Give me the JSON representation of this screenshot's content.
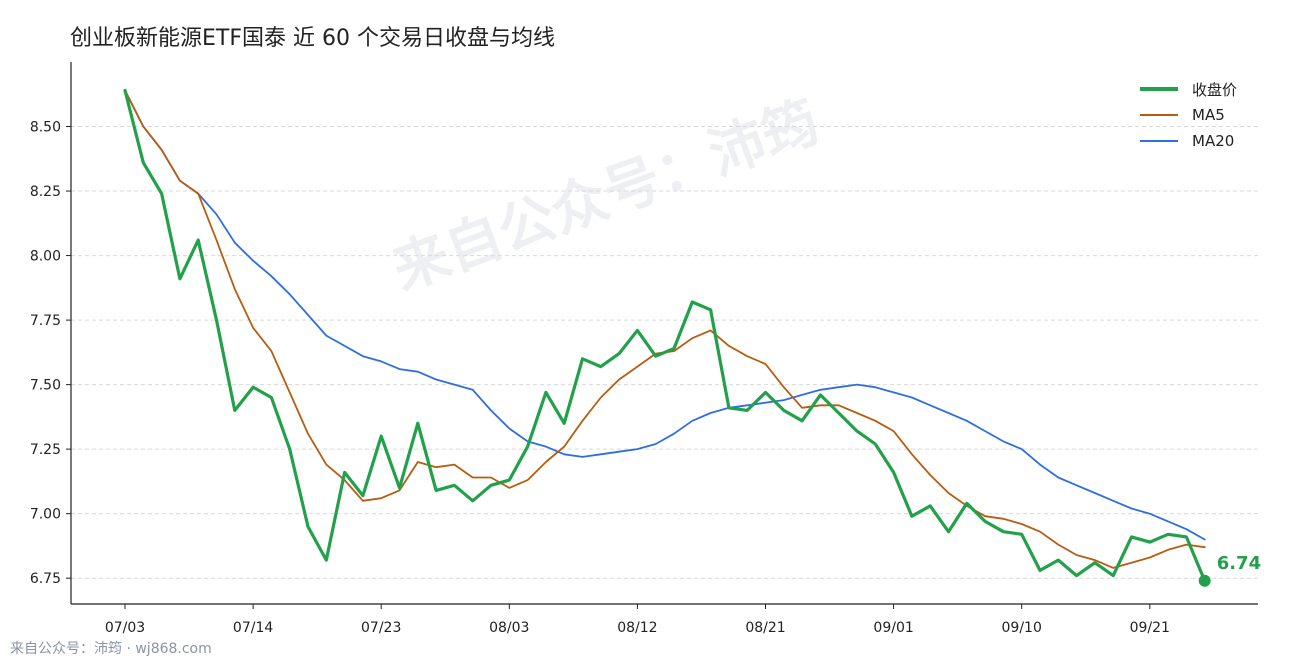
{
  "title": "创业板新能源ETF国泰 近 60 个交易日收盘与均线",
  "watermark": "来自公众号：沛筠",
  "footer": "来自公众号：沛筠 · wj868.com",
  "last_price_label": "6.74",
  "colors": {
    "close": "#22a04a",
    "ma5": "#b85c12",
    "ma20": "#2f6ee0",
    "grid": "#d9d9d9"
  },
  "chart_data": {
    "type": "line",
    "title": "创业板新能源ETF国泰 近 60 个交易日收盘与均线",
    "xlabel": "",
    "ylabel": "",
    "ylim": [
      6.65,
      8.75
    ],
    "yticks": [
      "6.75",
      "7.00",
      "7.25",
      "7.50",
      "7.75",
      "8.00",
      "8.25",
      "8.50"
    ],
    "xticks": [
      {
        "index": 0,
        "label": "07/03"
      },
      {
        "index": 7,
        "label": "07/14"
      },
      {
        "index": 14,
        "label": "07/23"
      },
      {
        "index": 21,
        "label": "08/03"
      },
      {
        "index": 28,
        "label": "08/12"
      },
      {
        "index": 35,
        "label": "08/21"
      },
      {
        "index": 42,
        "label": "09/01"
      },
      {
        "index": 49,
        "label": "09/10"
      },
      {
        "index": 56,
        "label": "09/21"
      }
    ],
    "grid": "horizontal dashed",
    "legend_position": "top-right",
    "series": [
      {
        "name": "收盘价",
        "color": "#22a04a",
        "values": [
          8.64,
          8.36,
          8.24,
          7.91,
          8.06,
          7.75,
          7.4,
          7.49,
          7.45,
          7.25,
          6.95,
          6.82,
          7.16,
          7.07,
          7.3,
          7.1,
          7.35,
          7.09,
          7.11,
          7.05,
          7.11,
          7.13,
          7.26,
          7.47,
          7.35,
          7.6,
          7.57,
          7.62,
          7.71,
          7.61,
          7.64,
          7.82,
          7.79,
          7.41,
          7.4,
          7.47,
          7.4,
          7.36,
          7.46,
          7.39,
          7.32,
          7.27,
          7.16,
          6.99,
          7.03,
          6.93,
          7.04,
          6.97,
          6.93,
          6.92,
          6.78,
          6.82,
          6.76,
          6.81,
          6.76,
          6.91,
          6.89,
          6.92,
          6.91,
          6.74
        ]
      },
      {
        "name": "MA5",
        "color": "#b85c12",
        "values": [
          8.64,
          8.5,
          8.41,
          8.29,
          8.24,
          8.06,
          7.87,
          7.72,
          7.63,
          7.47,
          7.31,
          7.19,
          7.13,
          7.05,
          7.06,
          7.09,
          7.2,
          7.18,
          7.19,
          7.14,
          7.14,
          7.1,
          7.13,
          7.2,
          7.26,
          7.36,
          7.45,
          7.52,
          7.57,
          7.62,
          7.63,
          7.68,
          7.71,
          7.65,
          7.61,
          7.58,
          7.49,
          7.41,
          7.42,
          7.42,
          7.39,
          7.36,
          7.32,
          7.23,
          7.15,
          7.08,
          7.03,
          6.99,
          6.98,
          6.96,
          6.93,
          6.88,
          6.84,
          6.82,
          6.79,
          6.81,
          6.83,
          6.86,
          6.88,
          6.87
        ]
      },
      {
        "name": "MA20",
        "color": "#2f6ee0",
        "values": [
          8.64,
          8.5,
          8.41,
          8.29,
          8.24,
          8.16,
          8.05,
          7.98,
          7.92,
          7.85,
          7.77,
          7.69,
          7.65,
          7.61,
          7.59,
          7.56,
          7.55,
          7.52,
          7.5,
          7.48,
          7.4,
          7.33,
          7.28,
          7.26,
          7.23,
          7.22,
          7.23,
          7.24,
          7.25,
          7.27,
          7.31,
          7.36,
          7.39,
          7.41,
          7.42,
          7.43,
          7.44,
          7.46,
          7.48,
          7.49,
          7.5,
          7.49,
          7.47,
          7.45,
          7.42,
          7.39,
          7.36,
          7.32,
          7.28,
          7.25,
          7.19,
          7.14,
          7.11,
          7.08,
          7.05,
          7.02,
          7.0,
          6.97,
          6.94,
          6.9
        ]
      }
    ]
  }
}
